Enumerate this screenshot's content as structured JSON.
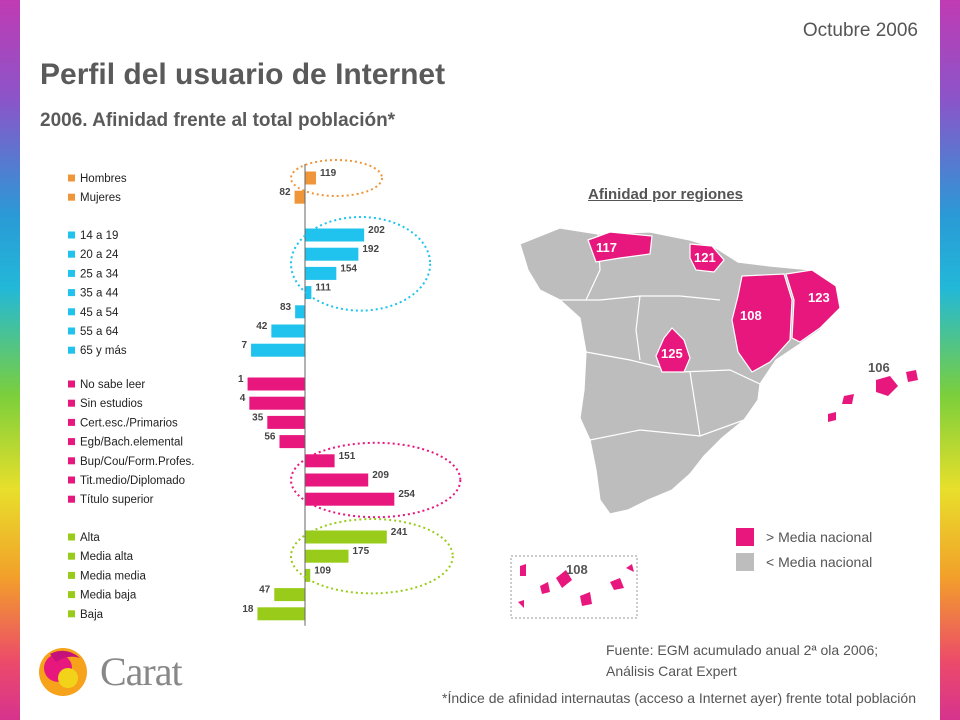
{
  "header": {
    "date": "Octubre 2006",
    "title": "Perfil del usuario de Internet",
    "subtitle": "2006. Afinidad frente al total población*"
  },
  "colors": {
    "sexo": "#f0963a",
    "edad": "#1fc3ee",
    "estudios": "#e8177e",
    "clase": "#99cc1a",
    "above": "#e8177e",
    "below": "#bdbdbd"
  },
  "chart_data": {
    "type": "bar",
    "orientation": "horizontal",
    "baseline": 100,
    "groups": [
      {
        "group": "sexo",
        "items": [
          {
            "label": "Hombres",
            "value": 119
          },
          {
            "label": "Mujeres",
            "value": 82
          }
        ]
      },
      {
        "group": "edad",
        "items": [
          {
            "label": "14 a 19",
            "value": 202
          },
          {
            "label": "20 a 24",
            "value": 192
          },
          {
            "label": "25 a 34",
            "value": 154
          },
          {
            "label": "35 a 44",
            "value": 111
          },
          {
            "label": "45 a 54",
            "value": 83
          },
          {
            "label": "55 a 64",
            "value": 42
          },
          {
            "label": "65 y más",
            "value": 7
          }
        ]
      },
      {
        "group": "estudios",
        "items": [
          {
            "label": "No sabe leer",
            "value": 1
          },
          {
            "label": "Sin estudios",
            "value": 4
          },
          {
            "label": "Cert.esc./Primarios",
            "value": 35
          },
          {
            "label": "Egb/Bach.elemental",
            "value": 56
          },
          {
            "label": "Bup/Cou/Form.Profes.",
            "value": 151
          },
          {
            "label": "Tit.medio/Diplomado",
            "value": 209
          },
          {
            "label": "Título superior",
            "value": 254
          }
        ]
      },
      {
        "group": "clase",
        "items": [
          {
            "label": "Alta",
            "value": 241
          },
          {
            "label": "Media alta",
            "value": 175
          },
          {
            "label": "Media media",
            "value": 109
          },
          {
            "label": "Media baja",
            "value": 47
          },
          {
            "label": "Baja",
            "value": 18
          }
        ]
      }
    ],
    "highlighted": [
      "Hombres",
      "14 a 19",
      "20 a 24",
      "25 a 34",
      "35 a 44",
      "Bup/Cou/Form.Profes.",
      "Tit.medio/Diplomado",
      "Título superior",
      "Alta",
      "Media alta",
      "Media media"
    ]
  },
  "map": {
    "title": "Afinidad por regiones",
    "regions": [
      {
        "name": "Asturias",
        "value": 117
      },
      {
        "name": "País Vasco",
        "value": 121
      },
      {
        "name": "Cataluña",
        "value": 123
      },
      {
        "name": "Aragón",
        "value": 108
      },
      {
        "name": "Madrid",
        "value": 125
      },
      {
        "name": "Baleares",
        "value": 106
      },
      {
        "name": "Canarias",
        "value": 108
      }
    ],
    "legend": [
      {
        "label": "> Media nacional",
        "color": "#e8177e"
      },
      {
        "label": "< Media nacional",
        "color": "#bdbdbd"
      }
    ]
  },
  "footer": {
    "source_line1": "Fuente: EGM acumulado anual 2ª ola 2006;",
    "source_line2": "Análisis Carat Expert",
    "footnote": "*Índice de afinidad internautas (acceso a Internet ayer) frente total población",
    "logo_text": "Carat"
  }
}
